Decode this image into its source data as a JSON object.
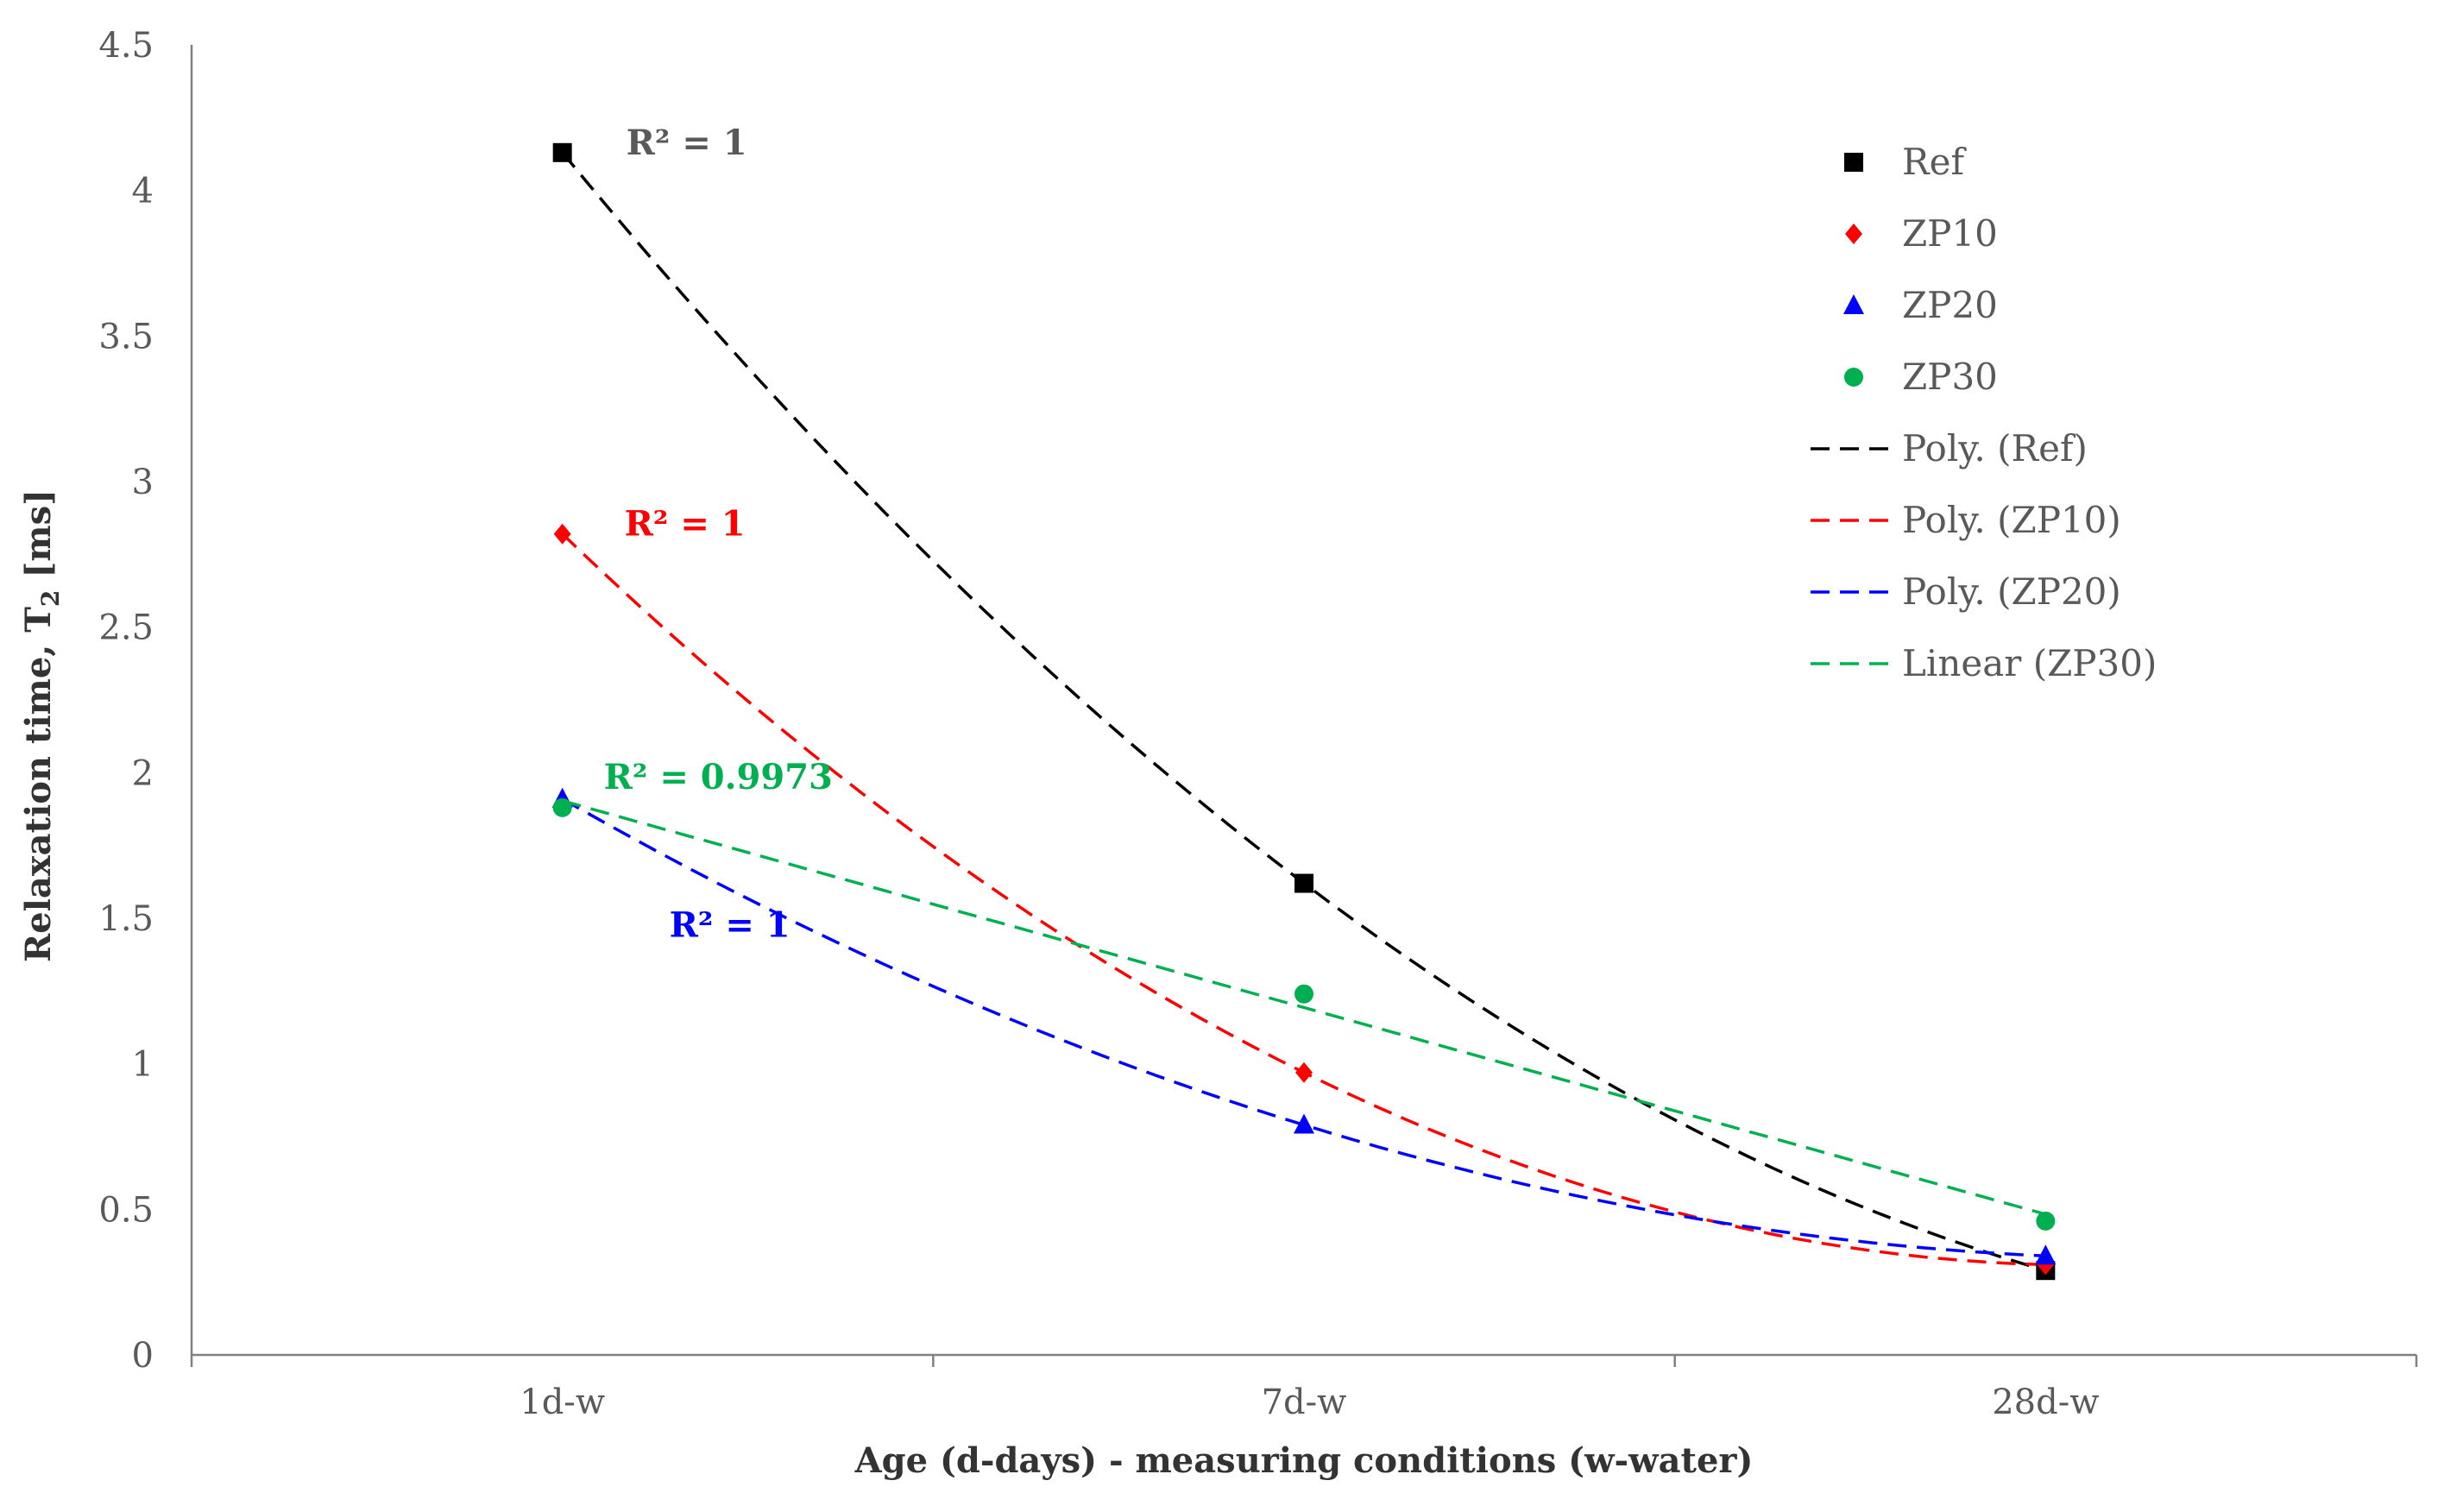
{
  "chart_data": {
    "type": "line",
    "title": "",
    "xlabel": "Age (d-days) - measuring conditions (w-water)",
    "ylabel": "Relaxation time, T",
    "ylabel_subscript": "2",
    "ylabel_unit": "[ms]",
    "categories": [
      "1d-w",
      "7d-w",
      "28d-w"
    ],
    "ylim": [
      0,
      4.5
    ],
    "yticks": [
      "0",
      "0.5",
      "1",
      "1.5",
      "2",
      "2.5",
      "3",
      "3.5",
      "4",
      "4.5"
    ],
    "grid": false,
    "legend_position": "top-right",
    "series": [
      {
        "name": "Ref",
        "values": [
          4.13,
          1.62,
          0.29
        ],
        "color": "#000000",
        "marker": "square"
      },
      {
        "name": "ZP10",
        "values": [
          2.82,
          0.97,
          0.31
        ],
        "color": "#ff0000",
        "marker": "diamond"
      },
      {
        "name": "ZP20",
        "values": [
          1.91,
          0.79,
          0.34
        ],
        "color": "#0000ff",
        "marker": "triangle"
      },
      {
        "name": "ZP30",
        "values": [
          1.88,
          1.24,
          0.46
        ],
        "color": "#00b050",
        "marker": "circle"
      }
    ],
    "trendlines": [
      {
        "name": "Poly. (Ref)",
        "type": "poly",
        "series": "Ref",
        "color": "#000000",
        "r2_label": "R² = 1",
        "r2_color": "#595959"
      },
      {
        "name": "Poly. (ZP10)",
        "type": "poly",
        "series": "ZP10",
        "color": "#ff0000",
        "r2_label": "R² = 1",
        "r2_color": "#ff0000"
      },
      {
        "name": "Poly. (ZP20)",
        "type": "poly",
        "series": "ZP20",
        "color": "#0000ff",
        "r2_label": "R² = 1",
        "r2_color": "#0000ff"
      },
      {
        "name": "Linear (ZP30)",
        "type": "linear",
        "series": "ZP30",
        "color": "#00b050",
        "r2_label": "R² = 0.9973",
        "r2_color": "#00b050"
      }
    ]
  }
}
